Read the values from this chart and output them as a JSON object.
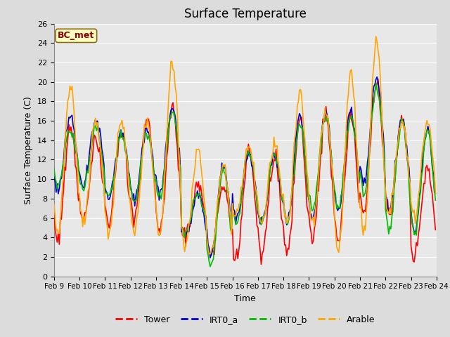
{
  "title": "Surface Temperature",
  "xlabel": "Time",
  "ylabel": "Surface Temperature (C)",
  "ylim": [
    0,
    26
  ],
  "yticks": [
    0,
    2,
    4,
    6,
    8,
    10,
    12,
    14,
    16,
    18,
    20,
    22,
    24,
    26
  ],
  "xtick_labels": [
    "Feb 9",
    "Feb 10",
    "Feb 11",
    "Feb 12",
    "Feb 13",
    "Feb 14",
    "Feb 15",
    "Feb 16",
    "Feb 17",
    "Feb 18",
    "Feb 19",
    "Feb 20",
    "Feb 21",
    "Feb 22",
    "Feb 23",
    "Feb 24"
  ],
  "annotation_text": "BC_met",
  "annotation_color": "#8B0000",
  "annotation_bg": "#FFFFC0",
  "annotation_border": "#8B6914",
  "colors": {
    "Tower": "#FF0000",
    "IRT0_a": "#0000CD",
    "IRT0_b": "#00BB00",
    "Arable": "#FFA500"
  },
  "plot_bg": "#E8E8E8",
  "grid_color": "#FFFFFF",
  "fig_bg": "#DCDCDC",
  "linewidth": 1.2
}
